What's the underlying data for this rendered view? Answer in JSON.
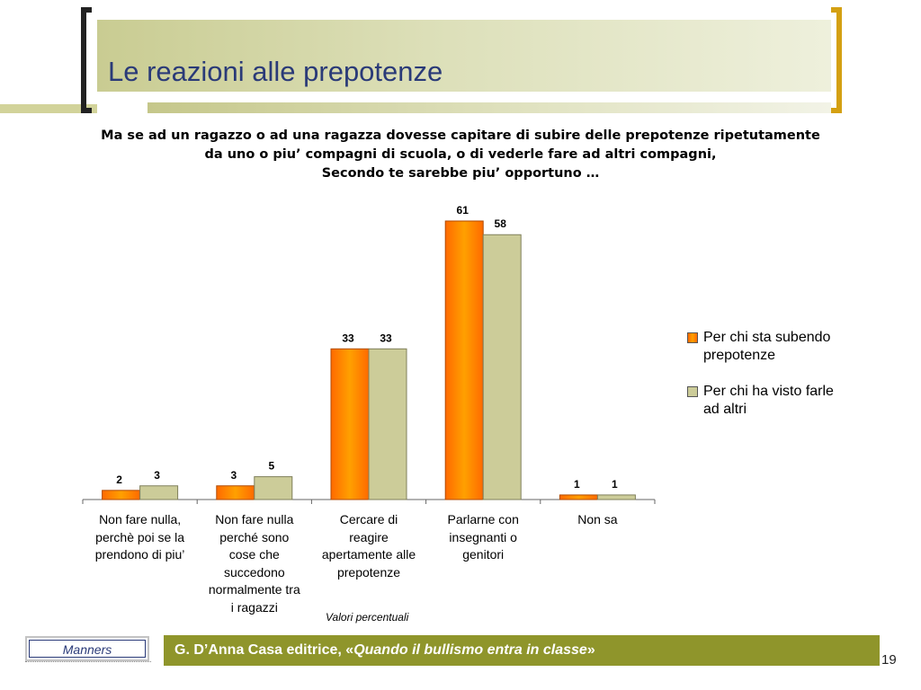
{
  "slide": {
    "title": "Le reazioni alle prepotenze",
    "question_lines": [
      "Ma se ad un ragazzo o ad una ragazza dovesse capitare di subire delle prepotenze ripetutamente",
      "da uno o piu’ compagni di scuola, o di vederle fare ad altri compagni,",
      "Secondo te sarebbe piu’ opportuno …"
    ],
    "unit_note": "Valori percentuali",
    "footer": {
      "brand": "Manners",
      "credit_prefix": "G. D’Anna Casa editrice, «",
      "credit_title": "Quando il bullismo entra in classe",
      "credit_suffix": "»",
      "page_number": "19"
    }
  },
  "chart_data": {
    "type": "bar",
    "categories": [
      "Non fare nulla, perchè poi se la prendono di piu’",
      "Non fare nulla perché sono cose che succedono normalmente tra i ragazzi",
      "Cercare di reagire apertamente alle prepotenze",
      "Parlarne con insegnanti o genitori",
      "Non sa"
    ],
    "category_label_lines": [
      [
        "Non fare nulla,",
        "perchè poi se la",
        "prendono di piu’"
      ],
      [
        "Non fare nulla",
        "perché sono",
        "cose che",
        "succedono",
        "normalmente tra",
        "i ragazzi"
      ],
      [
        "Cercare di",
        "reagire",
        "apertamente alle",
        "prepotenze"
      ],
      [
        "Parlarne con",
        "insegnanti o",
        "genitori"
      ],
      [
        "Non sa"
      ]
    ],
    "series": [
      {
        "name": "Per chi sta subendo prepotenze",
        "legend_lines": [
          "Per chi sta subendo",
          "prepotenze"
        ],
        "color": "#ff8c00",
        "values": [
          2,
          3,
          33,
          61,
          1
        ]
      },
      {
        "name": "Per chi ha visto farle ad altri",
        "legend_lines": [
          "Per chi ha visto farle",
          "ad altri"
        ],
        "color": "#cccc99",
        "values": [
          3,
          5,
          33,
          58,
          1
        ]
      }
    ],
    "ylim": [
      0,
      61
    ],
    "legend_position": "right",
    "grid": false
  }
}
